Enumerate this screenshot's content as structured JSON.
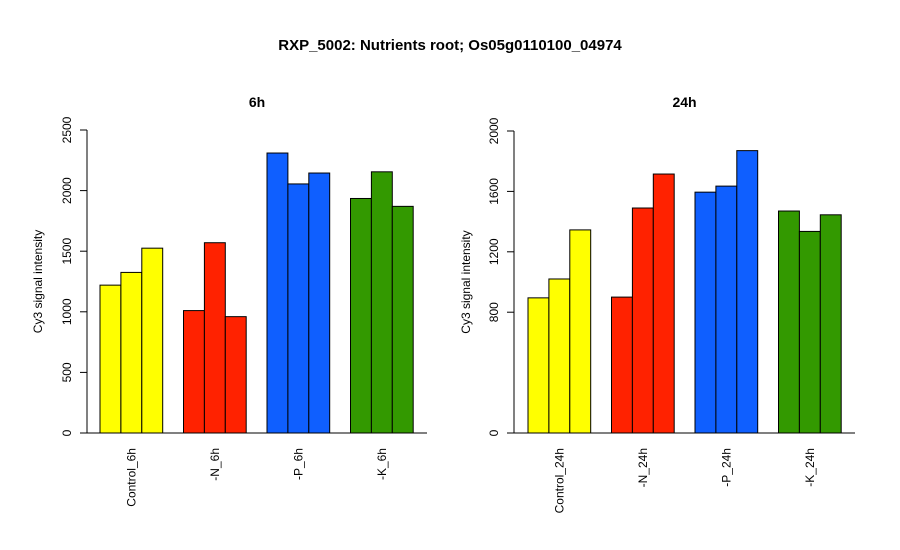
{
  "figure": {
    "title": "RXP_5002: Nutrients root; Os05g0110100_04974"
  },
  "chart_data": [
    {
      "type": "bar",
      "title": "6h",
      "ylabel": "Cy3 signal intensity",
      "xlabel": "",
      "ylim": [
        0,
        2500
      ],
      "yticks": [
        0,
        500,
        1000,
        1500,
        2000,
        2500
      ],
      "categories": [
        "Control_6h",
        "-N_6h",
        "-P_6h",
        "-K_6h"
      ],
      "colors": [
        "#ffff00",
        "#ff2200",
        "#0f5fff",
        "#339900"
      ],
      "values": [
        [
          1220,
          1325,
          1525
        ],
        [
          1010,
          1570,
          960
        ],
        [
          2310,
          2055,
          2145
        ],
        [
          1935,
          2155,
          1870
        ]
      ]
    },
    {
      "type": "bar",
      "title": "24h",
      "ylabel": "Cy3 signal intensity",
      "xlabel": "",
      "ylim": [
        0,
        2000
      ],
      "yticks": [
        0,
        800,
        1200,
        1600,
        2000
      ],
      "categories": [
        "Control_24h",
        "-N_24h",
        "-P_24h",
        "-K_24h"
      ],
      "colors": [
        "#ffff00",
        "#ff2200",
        "#0f5fff",
        "#339900"
      ],
      "values": [
        [
          895,
          1020,
          1345
        ],
        [
          900,
          1490,
          1715
        ],
        [
          1595,
          1635,
          1870
        ],
        [
          1470,
          1335,
          1445
        ]
      ]
    }
  ]
}
